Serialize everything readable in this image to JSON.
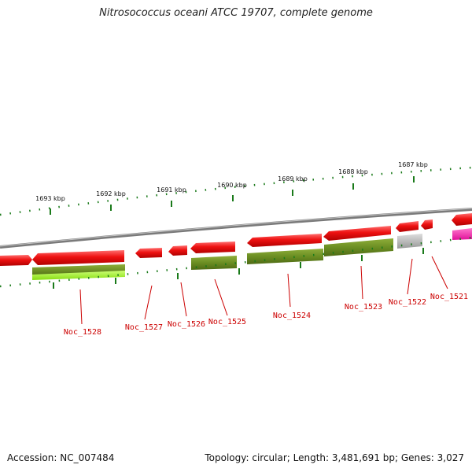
{
  "title": "Nitrosococcus oceani ATCC 19707, complete genome",
  "footer": {
    "accession": "Accession: NC_007484",
    "summary": "Topology: circular; Length: 3,481,691 bp; Genes: 3,027"
  },
  "colors": {
    "gene_red": "#e8141c",
    "gene_pink": "#ff1aa8",
    "cds_olive": "#6b8e23",
    "cds_lime": "#aaff33",
    "cds_gray": "#bbbbbb",
    "backbone": "#888888",
    "ticks": "#1a7a1a",
    "label": "#cc0000"
  },
  "kbp_labels": [
    "1693 kbp",
    "1692 kbp",
    "1691 kbp",
    "1690 kbp",
    "1689 kbp",
    "1688 kbp",
    "1687 kbp"
  ],
  "gene_labels": [
    "Noc_1528",
    "Noc_1527",
    "Noc_1526",
    "Noc_1525",
    "Noc_1524",
    "Noc_1523",
    "Noc_1522",
    "Noc_1521"
  ]
}
